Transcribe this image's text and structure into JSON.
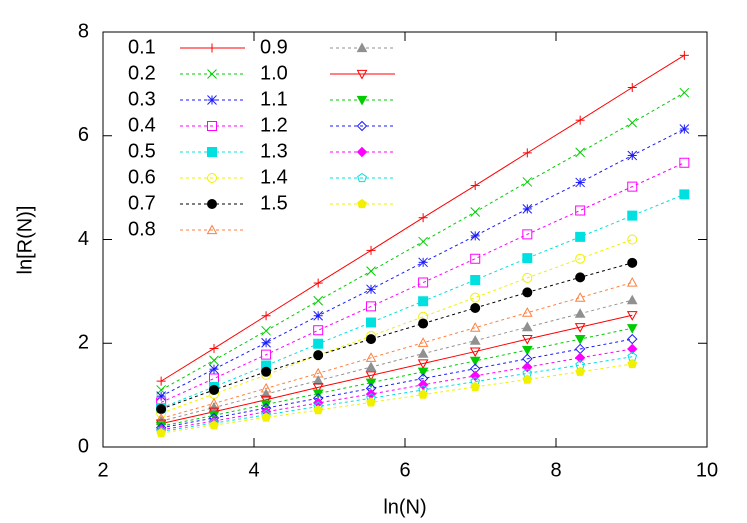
{
  "chart_data": {
    "type": "line",
    "xlabel": "ln(N)",
    "ylabel": "ln[R(N)]",
    "x": [
      2.77,
      3.47,
      4.16,
      4.85,
      5.55,
      6.24,
      6.93,
      7.62,
      8.32,
      9.01,
      9.7
    ],
    "xlim": [
      2,
      10
    ],
    "xticks": [
      2,
      4,
      6,
      8,
      10
    ],
    "ylim": [
      0,
      8
    ],
    "yticks": [
      0,
      2,
      4,
      6,
      8
    ],
    "grid": false,
    "legend": "top-left",
    "series": [
      {
        "name": "0.1",
        "color": "#ff0000",
        "marker": "plus",
        "dashed": false,
        "values": [
          1.27,
          1.9,
          2.53,
          3.16,
          3.79,
          4.42,
          5.04,
          5.67,
          6.3,
          6.93,
          7.55
        ]
      },
      {
        "name": "0.2",
        "color": "#00cc00",
        "marker": "cross",
        "dashed": true,
        "values": [
          1.1,
          1.67,
          2.24,
          2.82,
          3.39,
          3.96,
          4.53,
          5.11,
          5.68,
          6.25,
          6.83
        ]
      },
      {
        "name": "0.3",
        "color": "#1a1aff",
        "marker": "star",
        "dashed": true,
        "values": [
          0.98,
          1.5,
          2.01,
          2.53,
          3.04,
          3.56,
          4.07,
          4.59,
          5.1,
          5.62,
          6.13
        ]
      },
      {
        "name": "0.4",
        "color": "#ff00ff",
        "marker": "square",
        "dashed": true,
        "values": [
          0.86,
          1.32,
          1.78,
          2.25,
          2.71,
          3.17,
          3.63,
          4.1,
          4.56,
          5.02,
          5.48
        ]
      },
      {
        "name": "0.5",
        "color": "#00e0e0",
        "marker": "filled-square",
        "dashed": true,
        "values": [
          0.75,
          1.16,
          1.57,
          1.99,
          2.4,
          2.81,
          3.22,
          3.64,
          4.05,
          4.46,
          4.87
        ]
      },
      {
        "name": "0.6",
        "color": "#f0f000",
        "marker": "circle",
        "dashed": true,
        "values": [
          0.65,
          1.02,
          1.39,
          1.77,
          2.14,
          2.51,
          2.88,
          3.26,
          3.63,
          4.0,
          null
        ]
      },
      {
        "name": "0.7",
        "color": "#000000",
        "marker": "filled-circle",
        "dashed": true,
        "values": [
          0.73,
          1.1,
          1.45,
          1.77,
          2.08,
          2.38,
          2.68,
          2.98,
          3.27,
          3.55,
          null
        ]
      },
      {
        "name": "0.8",
        "color": "#ff7f3f",
        "marker": "triangle",
        "dashed": true,
        "values": [
          0.55,
          0.84,
          1.13,
          1.42,
          1.72,
          2.01,
          2.3,
          2.59,
          2.88,
          3.17,
          null
        ]
      },
      {
        "name": "0.9",
        "color": "#909090",
        "marker": "filled-triangle",
        "dashed": true,
        "values": [
          0.5,
          0.76,
          1.02,
          1.28,
          1.54,
          1.8,
          2.05,
          2.31,
          2.57,
          2.83,
          null
        ]
      },
      {
        "name": "1.0",
        "color": "#ff0000",
        "marker": "inverted-triangle",
        "dashed": false,
        "values": [
          0.45,
          0.68,
          0.91,
          1.15,
          1.38,
          1.61,
          1.84,
          2.08,
          2.31,
          2.54,
          null
        ]
      },
      {
        "name": "1.1",
        "color": "#00cc00",
        "marker": "filled-inverted-triangle",
        "dashed": true,
        "values": [
          0.4,
          0.61,
          0.82,
          1.03,
          1.24,
          1.45,
          1.66,
          1.87,
          2.08,
          2.29,
          null
        ]
      },
      {
        "name": "1.2",
        "color": "#1a1aff",
        "marker": "diamond",
        "dashed": true,
        "values": [
          0.37,
          0.56,
          0.75,
          0.94,
          1.13,
          1.32,
          1.51,
          1.7,
          1.89,
          2.08,
          null
        ]
      },
      {
        "name": "1.3",
        "color": "#ff00ff",
        "marker": "filled-diamond",
        "dashed": true,
        "values": [
          0.33,
          0.5,
          0.68,
          0.85,
          1.02,
          1.2,
          1.37,
          1.54,
          1.72,
          1.89,
          null
        ]
      },
      {
        "name": "1.4",
        "color": "#00e0e0",
        "marker": "pentagon",
        "dashed": true,
        "values": [
          0.3,
          0.46,
          0.62,
          0.78,
          0.94,
          1.1,
          1.26,
          1.42,
          1.58,
          1.74,
          null
        ]
      },
      {
        "name": "1.5",
        "color": "#f0f000",
        "marker": "filled-pentagon",
        "dashed": true,
        "values": [
          0.27,
          0.42,
          0.57,
          0.71,
          0.86,
          1.01,
          1.16,
          1.3,
          1.45,
          1.6,
          null
        ]
      }
    ]
  }
}
